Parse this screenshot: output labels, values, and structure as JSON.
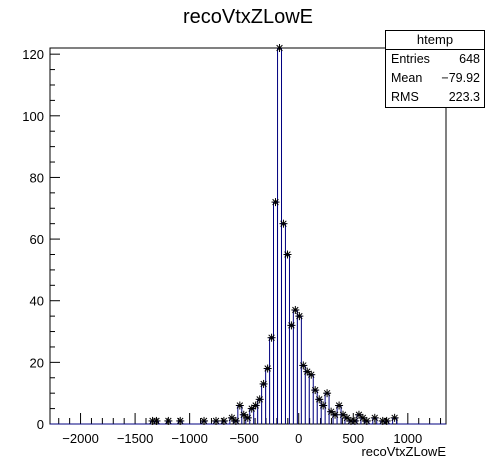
{
  "chart_data": {
    "type": "histogram",
    "title": "recoVtxZLowE",
    "xlabel": "recoVtxZLowE",
    "ylabel": "",
    "xlim": [
      -2280,
      1350
    ],
    "ylim": [
      0,
      122
    ],
    "xticks": [
      -2000,
      -1500,
      -1000,
      -500,
      0,
      500,
      1000
    ],
    "yticks": [
      0,
      20,
      40,
      60,
      80,
      100,
      120
    ],
    "xticklabels": [
      "−2000",
      "−1500",
      "−1000",
      "−500",
      "0",
      "500",
      "1000"
    ],
    "yticklabels": [
      "0",
      "20",
      "40",
      "60",
      "80",
      "100",
      "120"
    ],
    "bin_width": 36.4,
    "bins": [
      {
        "x": -1340,
        "y": 1
      },
      {
        "x": -1304,
        "y": 1
      },
      {
        "x": -1195,
        "y": 1
      },
      {
        "x": -1086,
        "y": 1
      },
      {
        "x": -868,
        "y": 1
      },
      {
        "x": -758,
        "y": 1
      },
      {
        "x": -686,
        "y": 1
      },
      {
        "x": -613,
        "y": 2
      },
      {
        "x": -576,
        "y": 1
      },
      {
        "x": -540,
        "y": 6
      },
      {
        "x": -504,
        "y": 3
      },
      {
        "x": -467,
        "y": 2
      },
      {
        "x": -431,
        "y": 5
      },
      {
        "x": -395,
        "y": 6
      },
      {
        "x": -358,
        "y": 8
      },
      {
        "x": -322,
        "y": 13
      },
      {
        "x": -285,
        "y": 18
      },
      {
        "x": -249,
        "y": 28
      },
      {
        "x": -213,
        "y": 72
      },
      {
        "x": -176,
        "y": 122
      },
      {
        "x": -140,
        "y": 65
      },
      {
        "x": -103,
        "y": 55
      },
      {
        "x": -67,
        "y": 32
      },
      {
        "x": -31,
        "y": 37
      },
      {
        "x": 6,
        "y": 35
      },
      {
        "x": 42,
        "y": 19
      },
      {
        "x": 78,
        "y": 17
      },
      {
        "x": 115,
        "y": 16
      },
      {
        "x": 151,
        "y": 11
      },
      {
        "x": 188,
        "y": 8
      },
      {
        "x": 224,
        "y": 6
      },
      {
        "x": 260,
        "y": 10
      },
      {
        "x": 297,
        "y": 4
      },
      {
        "x": 333,
        "y": 3
      },
      {
        "x": 370,
        "y": 6
      },
      {
        "x": 406,
        "y": 3
      },
      {
        "x": 442,
        "y": 2
      },
      {
        "x": 479,
        "y": 1
      },
      {
        "x": 515,
        "y": 1
      },
      {
        "x": 552,
        "y": 3
      },
      {
        "x": 588,
        "y": 2
      },
      {
        "x": 624,
        "y": 1
      },
      {
        "x": 697,
        "y": 2
      },
      {
        "x": 770,
        "y": 1
      },
      {
        "x": 806,
        "y": 1
      },
      {
        "x": 879,
        "y": 2
      }
    ],
    "stats": {
      "title": "htemp",
      "entries_label": "Entries",
      "entries_value": "648",
      "mean_label": "Mean",
      "mean_value": "−79.92",
      "rms_label": "RMS",
      "rms_value": "223.3"
    },
    "line_color": "#00007f",
    "marker_color": "#000000",
    "marker": "asterisk",
    "grid": false,
    "legend": "top-right"
  }
}
